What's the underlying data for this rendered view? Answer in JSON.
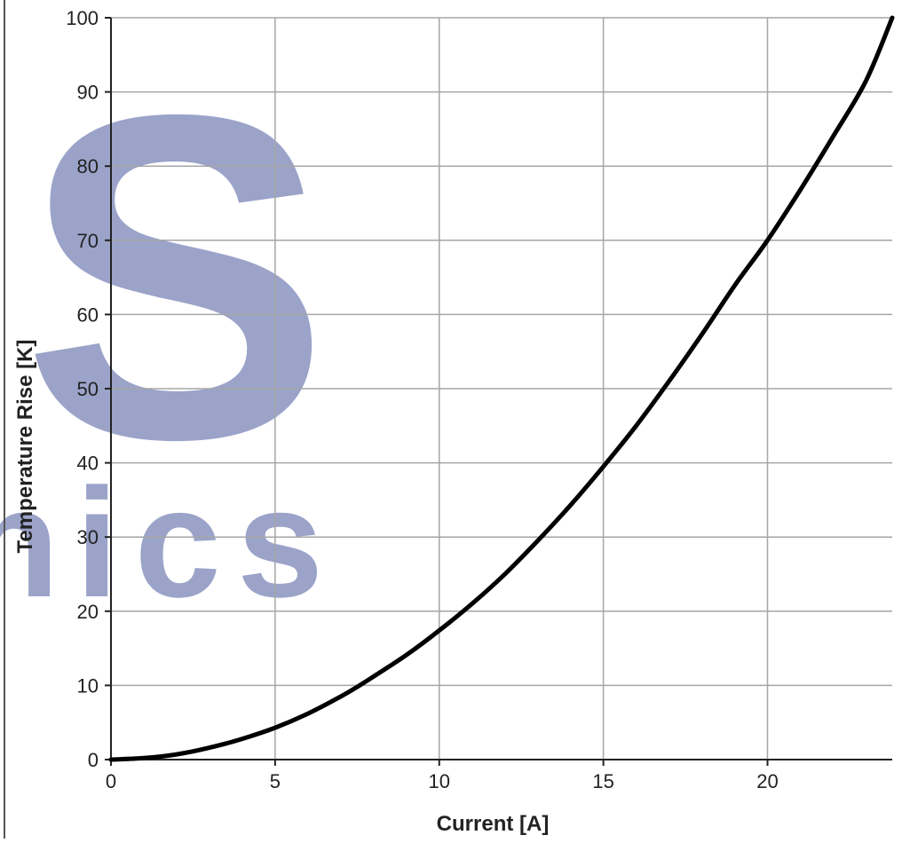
{
  "chart_data": {
    "type": "line",
    "title": "",
    "xlabel": "Current [A]",
    "ylabel": "Temperature Rise [K]",
    "xlim": [
      0,
      23.8
    ],
    "ylim": [
      0,
      100
    ],
    "x_ticks": [
      0,
      5,
      10,
      15,
      20
    ],
    "y_ticks": [
      0,
      10,
      20,
      30,
      40,
      50,
      60,
      70,
      80,
      90,
      100
    ],
    "grid": true,
    "legend": "none",
    "series": [
      {
        "color": "#000000",
        "x": [
          0,
          1,
          2,
          3,
          4,
          5,
          6,
          7,
          7.5,
          8,
          9,
          10,
          11,
          12,
          13,
          14,
          15,
          16,
          17,
          18,
          19,
          20,
          21,
          22,
          23,
          23.8
        ],
        "y": [
          0,
          0.2,
          0.7,
          1.6,
          2.8,
          4.3,
          6.2,
          8.5,
          9.8,
          11.2,
          14.1,
          17.4,
          21.0,
          25.0,
          29.5,
          34.3,
          39.5,
          45.0,
          51.0,
          57.3,
          63.9,
          70.0,
          76.8,
          84.0,
          91.5,
          100
        ]
      }
    ]
  },
  "watermark": {
    "letter": "S",
    "text": "nics",
    "color": "#8a93c0"
  }
}
